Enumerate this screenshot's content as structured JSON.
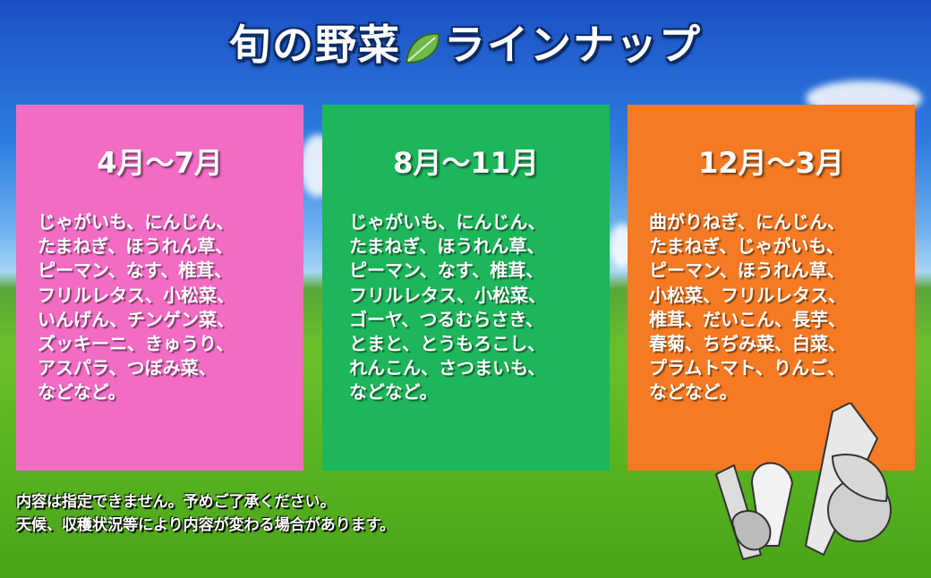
{
  "title": {
    "left": "旬の野菜",
    "right": "ラインナップ",
    "icon": "leaf-icon"
  },
  "colors": {
    "spring": "#f26cc4",
    "summer": "#1db65a",
    "winter": "#f57a23"
  },
  "panels": [
    {
      "heading": "4月～7月",
      "lines": [
        "じゃがいも、にんじん、",
        "たまねぎ、ほうれん草、",
        "ピーマン、なす、椎茸、",
        "フリルレタス、小松菜、",
        "いんげん、チンゲン菜、",
        "ズッキーニ、きゅうり、",
        "アスパラ、つぼみ菜、",
        "などなど。"
      ]
    },
    {
      "heading": "8月～11月",
      "lines": [
        "じゃがいも、にんじん、",
        "たまねぎ、ほうれん草、",
        "ピーマン、なす、椎茸、",
        "フリルレタス、小松菜、",
        "ゴーヤ、つるむらさき、",
        "とまと、とうもろこし、",
        "れんこん、さつまいも、",
        "などなど。"
      ]
    },
    {
      "heading": "12月～3月",
      "lines": [
        "曲がりねぎ、にんじん、",
        "たまねぎ、じゃがいも、",
        "ピーマン、ほうれん草、",
        "小松菜、フリルレタス、",
        "椎茸、だいこん、長芋、",
        "春菊、ちぢみ菜、白菜、",
        "プラムトマト、りんご、",
        "などなど。"
      ]
    }
  ],
  "notes": [
    "内容は指定できません。予めご了承ください。",
    "天候、収穫状況等により内容が変わる場合があります。"
  ]
}
